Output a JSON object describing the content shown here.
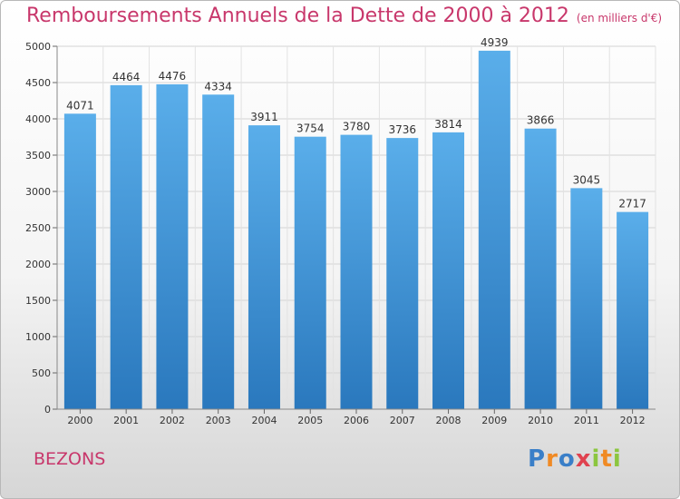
{
  "title": "Remboursements Annuels de la Dette de 2000 à 2012",
  "subtitle": "(en milliers d'€)",
  "commune": "BEZONS",
  "logo": {
    "text": "Proxiti",
    "letters": [
      {
        "ch": "P",
        "color": "#3a7fc8"
      },
      {
        "ch": "r",
        "color": "#f08a24"
      },
      {
        "ch": "o",
        "color": "#3a7fc8"
      },
      {
        "ch": "x",
        "color": "#e0424f"
      },
      {
        "ch": "i",
        "color": "#8cc63f"
      },
      {
        "ch": "t",
        "color": "#f08a24"
      },
      {
        "ch": "i",
        "color": "#8cc63f"
      }
    ]
  },
  "colors": {
    "accent": "#c8376b",
    "bar_top": "#5aaeea",
    "bar_bottom": "#2a78bd"
  },
  "chart_data": {
    "type": "bar",
    "categories": [
      "2000",
      "2001",
      "2002",
      "2003",
      "2004",
      "2005",
      "2006",
      "2007",
      "2008",
      "2009",
      "2010",
      "2011",
      "2012"
    ],
    "values": [
      4071,
      4464,
      4476,
      4334,
      3911,
      3754,
      3780,
      3736,
      3814,
      4939,
      3866,
      3045,
      2717
    ],
    "title": "Remboursements Annuels de la Dette de 2000 à 2012",
    "ylim": [
      0,
      5000
    ],
    "yticks": [
      0,
      500,
      1000,
      1500,
      2000,
      2500,
      3000,
      3500,
      4000,
      4500,
      5000
    ],
    "grid": true,
    "legend": "none"
  }
}
